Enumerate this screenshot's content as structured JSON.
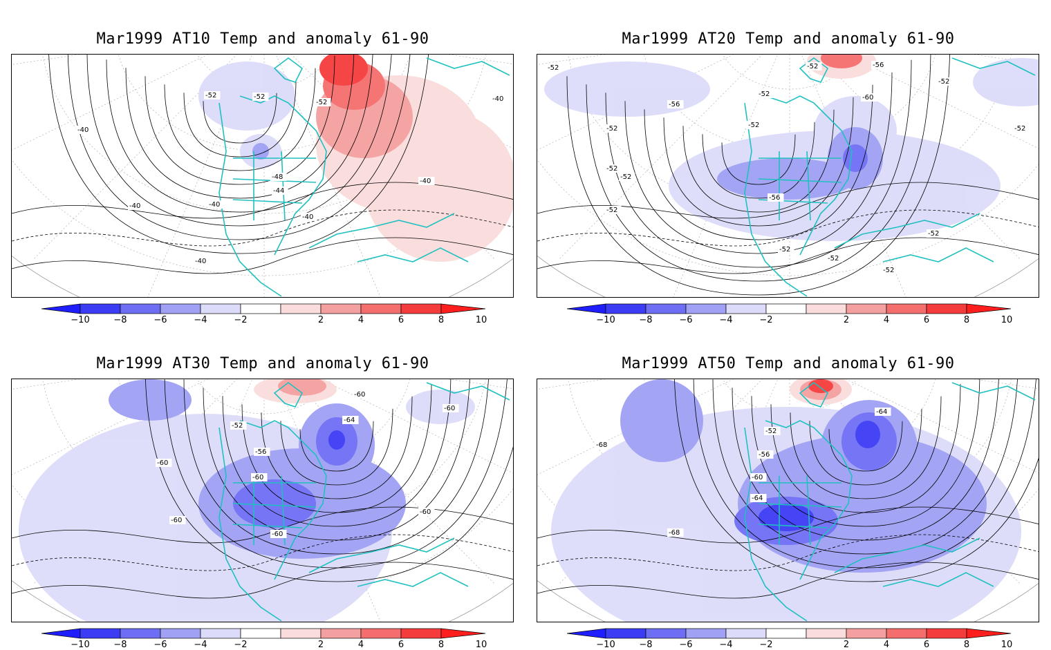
{
  "panels": [
    {
      "title": "Mar1999 AT10 Temp and anomaly 61-90",
      "contour_labels": [
        "-52",
        "-52",
        "-52",
        "-40",
        "-40",
        "-40",
        "-40",
        "-40",
        "-40",
        "-40",
        "-48",
        "-44"
      ],
      "anomaly_pattern": "warm-east"
    },
    {
      "title": "Mar1999 AT20 Temp and anomaly 61-90",
      "contour_labels": [
        "-52",
        "-52",
        "-56",
        "-52",
        "-60",
        "-52",
        "-56",
        "-52",
        "-52",
        "-52",
        "-52",
        "-56",
        "-52",
        "-52",
        "-52",
        "-52",
        "-52",
        "-52"
      ],
      "anomaly_pattern": "cold-band"
    },
    {
      "title": "Mar1999 AT30 Temp and anomaly 61-90",
      "contour_labels": [
        "-60",
        "-64",
        "-52",
        "-56",
        "-60",
        "-60",
        "-60",
        "-60",
        "-60",
        "-60"
      ],
      "anomaly_pattern": "cold-wide"
    },
    {
      "title": "Mar1999 AT50 Temp and anomaly 61-90",
      "contour_labels": [
        "-64",
        "-52",
        "-56",
        "-60",
        "-64",
        "-68",
        "-68"
      ],
      "anomaly_pattern": "cold-strong"
    }
  ],
  "colorbar": {
    "labels": [
      "−10",
      "−8",
      "−6",
      "−4",
      "−2",
      "2",
      "4",
      "6",
      "8",
      "10"
    ],
    "colors": [
      "#1e1eff",
      "#3c3cf5",
      "#6e6ef5",
      "#a0a0f5",
      "#dcdcfa",
      "#ffffff",
      "#fadcdc",
      "#f5a0a0",
      "#f56e6e",
      "#f53c3c",
      "#ff1e1e"
    ]
  },
  "colors": {
    "coastline": "#20c0c0",
    "contour": "#000000",
    "grid": "#b0b0b0"
  }
}
